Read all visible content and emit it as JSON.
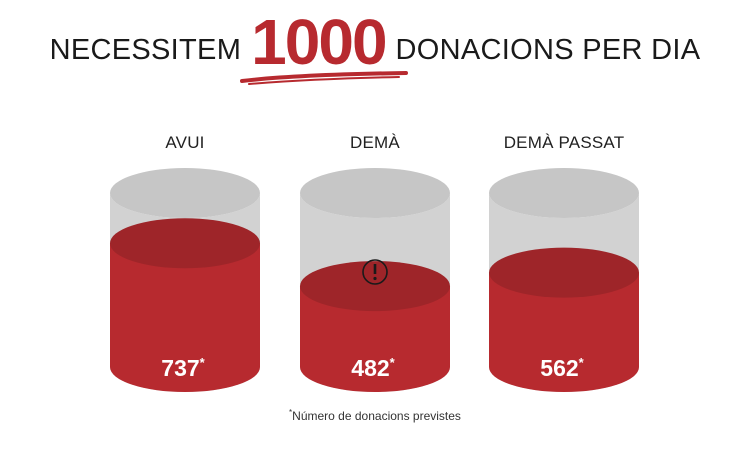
{
  "headline": {
    "prefix": "NECESSITEM",
    "number": "1000",
    "suffix": "DONACIONS PER DIA"
  },
  "chart_data": {
    "type": "bar",
    "categories": [
      "AVUI",
      "DEMÀ",
      "DEMÀ PASSAT"
    ],
    "values": [
      737,
      482,
      562
    ],
    "value_suffix": "*",
    "ylim": [
      0,
      1000
    ],
    "warnings": [
      false,
      true,
      false
    ],
    "footnote_mark": "*",
    "footnote": "Número de donacions previstes"
  },
  "colors": {
    "accent": "#b72a2f",
    "accent_top": "#9e2529",
    "empty": "#d2d2d2",
    "empty_top": "#c6c6c6"
  },
  "icons": {
    "warning": "exclamation-circle-icon"
  }
}
